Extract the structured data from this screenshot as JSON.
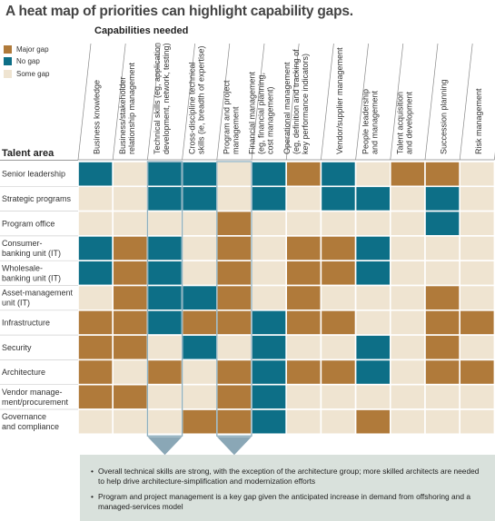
{
  "title": "A heat map of priorities can highlight capability gaps.",
  "legend": [
    {
      "label": "Major gap",
      "color": "#b07a3a"
    },
    {
      "label": "No gap",
      "color": "#0d6f87"
    },
    {
      "label": "Some gap",
      "color": "#efe4d1"
    }
  ],
  "chart_data": {
    "type": "heatmap",
    "title": "A heat map of priorities can highlight capability gaps.",
    "xlabel": "Capabilities needed",
    "ylabel": "Talent area",
    "columns": [
      [
        "Business knowledge"
      ],
      [
        "Business/stakeholder",
        "relationship management"
      ],
      [
        "Technical skills (eg, application",
        "development, network, testing)"
      ],
      [
        "Cross-discipline technical",
        "skills (ie, breadth of expertise)"
      ],
      [
        "Program and project",
        "management"
      ],
      [
        "Financial management",
        "(eg, financial planning,",
        "cost management)"
      ],
      [
        "Operational management",
        "(eg, definition and tracking of",
        "key performance indicators)"
      ],
      [
        "Vendor/supplier management"
      ],
      [
        "People leadership",
        "and management"
      ],
      [
        "Talent acquisition",
        "and development"
      ],
      [
        "Succession planning"
      ],
      [
        "Risk management"
      ]
    ],
    "rows": [
      [
        "Senior leadership"
      ],
      [
        "Strategic programs"
      ],
      [
        "Program office"
      ],
      [
        "Consumer-",
        "banking unit (IT)"
      ],
      [
        "Wholesale-",
        "banking unit (IT)"
      ],
      [
        "Asset-management",
        "unit (IT)"
      ],
      [
        "Infrastructure"
      ],
      [
        "Security"
      ],
      [
        "Architecture"
      ],
      [
        "Vendor manage-",
        "ment/procurement"
      ],
      [
        "Governance",
        "and compliance"
      ]
    ],
    "levels": {
      "M": "Major gap",
      "N": "No gap",
      "S": "Some gap"
    },
    "values": [
      [
        "N",
        "S",
        "N",
        "N",
        "S",
        "N",
        "M",
        "N",
        "S",
        "M",
        "M",
        "S"
      ],
      [
        "S",
        "S",
        "N",
        "N",
        "S",
        "N",
        "S",
        "N",
        "N",
        "S",
        "N",
        "S"
      ],
      [
        "S",
        "S",
        "S",
        "S",
        "M",
        "S",
        "S",
        "S",
        "S",
        "S",
        "N",
        "S"
      ],
      [
        "N",
        "M",
        "N",
        "S",
        "M",
        "S",
        "M",
        "M",
        "N",
        "S",
        "S",
        "S"
      ],
      [
        "N",
        "M",
        "N",
        "S",
        "M",
        "S",
        "M",
        "M",
        "N",
        "S",
        "S",
        "S"
      ],
      [
        "S",
        "M",
        "N",
        "N",
        "M",
        "S",
        "M",
        "S",
        "S",
        "S",
        "M",
        "S"
      ],
      [
        "M",
        "M",
        "N",
        "M",
        "M",
        "N",
        "M",
        "M",
        "S",
        "S",
        "M",
        "M"
      ],
      [
        "M",
        "M",
        "S",
        "N",
        "S",
        "N",
        "S",
        "S",
        "N",
        "S",
        "M",
        "S"
      ],
      [
        "M",
        "S",
        "M",
        "S",
        "M",
        "N",
        "M",
        "M",
        "N",
        "S",
        "M",
        "M"
      ],
      [
        "M",
        "M",
        "S",
        "S",
        "M",
        "N",
        "S",
        "S",
        "S",
        "S",
        "S",
        "S"
      ],
      [
        "S",
        "S",
        "S",
        "M",
        "M",
        "N",
        "S",
        "S",
        "M",
        "S",
        "S",
        "S"
      ]
    ],
    "highlighted_columns": [
      2,
      4
    ]
  },
  "notes": [
    "Overall technical skills are strong, with the exception of the architecture group; more skilled architects are needed to help drive architecture-simplification and modernization efforts",
    "Program and project management is a key gap given the anticipated increase in demand from offshoring and a managed-services model"
  ]
}
